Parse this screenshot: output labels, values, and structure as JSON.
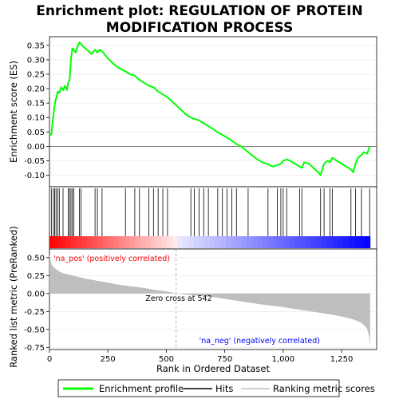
{
  "title_line1": "Enrichment plot: REGULATION OF PROTEIN",
  "title_line2": "MODIFICATION PROCESS",
  "legend": {
    "profile": "Enrichment profile",
    "hits": "Hits",
    "ranking": "Ranking metric scores"
  },
  "colors": {
    "profile": "#00ff00",
    "hits": "#000000",
    "ranking": "#bebebe",
    "pos_text": "#ff0000",
    "neg_text": "#0000ff",
    "pos_bar": "#ff0000",
    "neg_bar": "#0000ff"
  },
  "chart_data": [
    {
      "type": "line",
      "name": "enrichment-score",
      "ylabel": "Enrichment score (ES)",
      "xlim": [
        0,
        1400
      ],
      "ylim": [
        -0.14,
        0.38
      ],
      "yticks": [
        -0.1,
        -0.05,
        0.0,
        0.05,
        0.1,
        0.15,
        0.2,
        0.25,
        0.3,
        0.35
      ],
      "ytick_labels": [
        "-0.10",
        "-0.05",
        "0.00",
        "0.05",
        "0.10",
        "0.15",
        "0.20",
        "0.25",
        "0.30",
        "0.35"
      ],
      "x": [
        0,
        8,
        12,
        17,
        22,
        28,
        35,
        42,
        50,
        58,
        66,
        74,
        80,
        86,
        92,
        98,
        104,
        112,
        120,
        128,
        135,
        145,
        160,
        180,
        195,
        205,
        215,
        225,
        235,
        250,
        275,
        300,
        325,
        345,
        365,
        385,
        405,
        425,
        445,
        465,
        485,
        505,
        525,
        545,
        565,
        585,
        605,
        620,
        640,
        660,
        680,
        700,
        720,
        740,
        760,
        780,
        800,
        820,
        850,
        880,
        910,
        935,
        955,
        975,
        990,
        1000,
        1015,
        1030,
        1050,
        1070,
        1080,
        1090,
        1110,
        1130,
        1150,
        1160,
        1175,
        1190,
        1200,
        1210,
        1230,
        1260,
        1290,
        1300,
        1310,
        1320,
        1335,
        1345,
        1360,
        1370
      ],
      "y": [
        0.045,
        0.04,
        0.075,
        0.11,
        0.14,
        0.165,
        0.19,
        0.185,
        0.205,
        0.195,
        0.21,
        0.195,
        0.22,
        0.23,
        0.3,
        0.34,
        0.335,
        0.325,
        0.345,
        0.36,
        0.355,
        0.345,
        0.335,
        0.32,
        0.335,
        0.325,
        0.335,
        0.33,
        0.32,
        0.305,
        0.285,
        0.27,
        0.26,
        0.25,
        0.245,
        0.23,
        0.22,
        0.21,
        0.205,
        0.19,
        0.18,
        0.17,
        0.155,
        0.14,
        0.125,
        0.11,
        0.1,
        0.095,
        0.09,
        0.08,
        0.07,
        0.06,
        0.048,
        0.04,
        0.03,
        0.02,
        0.008,
        0.0,
        -0.02,
        -0.04,
        -0.055,
        -0.062,
        -0.07,
        -0.065,
        -0.06,
        -0.05,
        -0.045,
        -0.05,
        -0.06,
        -0.07,
        -0.075,
        -0.055,
        -0.06,
        -0.075,
        -0.09,
        -0.1,
        -0.06,
        -0.05,
        -0.055,
        -0.04,
        -0.05,
        -0.065,
        -0.08,
        -0.09,
        -0.06,
        -0.04,
        -0.03,
        -0.02,
        -0.025,
        0.0
      ]
    },
    {
      "type": "scatter",
      "name": "hits",
      "x": [
        8,
        17,
        22,
        28,
        35,
        42,
        58,
        80,
        86,
        92,
        98,
        104,
        128,
        135,
        195,
        205,
        225,
        325,
        365,
        385,
        425,
        445,
        465,
        485,
        505,
        605,
        620,
        640,
        660,
        680,
        720,
        740,
        760,
        780,
        800,
        850,
        935,
        975,
        990,
        1000,
        1015,
        1070,
        1080,
        1160,
        1175,
        1200,
        1210,
        1290,
        1310,
        1335,
        1370
      ]
    },
    {
      "type": "area",
      "name": "ranking-metric",
      "xlabel": "Rank in Ordered Dataset",
      "ylabel": "Ranked list metric (PreRanked)",
      "xlim": [
        0,
        1400
      ],
      "ylim": [
        -0.78,
        0.62
      ],
      "xticks": [
        0,
        250,
        500,
        750,
        1000,
        1250
      ],
      "xtick_labels": [
        "0",
        "250",
        "500",
        "750",
        "1,000",
        "1,250"
      ],
      "yticks": [
        -0.75,
        -0.5,
        -0.25,
        0.0,
        0.25,
        0.5
      ],
      "ytick_labels": [
        "-0.75",
        "-0.50",
        "-0.25",
        "0.00",
        "0.25",
        "0.50"
      ],
      "x": [
        0,
        5,
        10,
        20,
        40,
        60,
        100,
        150,
        200,
        250,
        300,
        350,
        400,
        450,
        500,
        542,
        600,
        700,
        800,
        900,
        1000,
        1100,
        1200,
        1250,
        1300,
        1330,
        1350,
        1360,
        1368,
        1372
      ],
      "y": [
        0.55,
        0.45,
        0.4,
        0.36,
        0.31,
        0.28,
        0.25,
        0.21,
        0.18,
        0.15,
        0.12,
        0.1,
        0.08,
        0.05,
        0.03,
        0.0,
        -0.02,
        -0.05,
        -0.1,
        -0.15,
        -0.19,
        -0.24,
        -0.29,
        -0.32,
        -0.36,
        -0.4,
        -0.45,
        -0.5,
        -0.6,
        -0.72
      ],
      "zero_cross": 542
    }
  ],
  "annotations": {
    "pos_label": "'na_pos' (positively correlated)",
    "neg_label": "'na_neg' (negatively correlated)",
    "zero_cross": "Zero cross at 542"
  }
}
